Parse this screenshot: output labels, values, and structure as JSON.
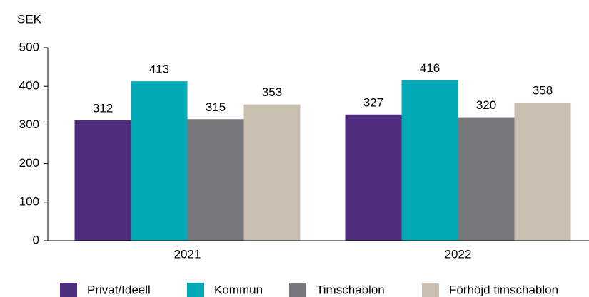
{
  "chart_data": {
    "type": "bar",
    "y_label": "SEK",
    "categories": [
      "2021",
      "2022"
    ],
    "series": [
      {
        "name": "Privat/Ideell",
        "color": "#4f2d7f",
        "values": [
          312,
          327
        ]
      },
      {
        "name": "Kommun",
        "color": "#00a9b5",
        "values": [
          413,
          416
        ]
      },
      {
        "name": "Timschablon",
        "color": "#77787b",
        "values": [
          315,
          320
        ]
      },
      {
        "name": "Förhöjd timschablon",
        "color": "#c8bfb0",
        "values": [
          353,
          358
        ]
      }
    ],
    "ylim": [
      0,
      500
    ],
    "yticks": [
      0,
      100,
      200,
      300,
      400,
      500
    ],
    "legend": "bottom"
  }
}
